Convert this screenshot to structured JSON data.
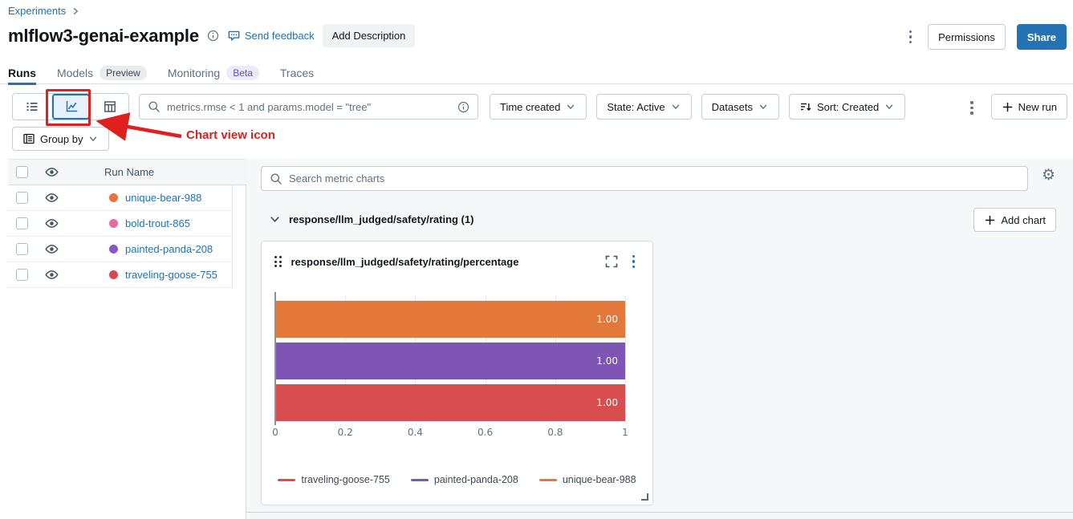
{
  "colors": {
    "accent": "#2272b4",
    "annotation_red": "#e01f1f"
  },
  "breadcrumb": {
    "label": "Experiments"
  },
  "header": {
    "title": "mlflow3-genai-example",
    "send_feedback": "Send feedback",
    "add_description": "Add Description",
    "permissions": "Permissions",
    "share": "Share"
  },
  "tabs": [
    {
      "label": "Runs",
      "badge": null,
      "active": true
    },
    {
      "label": "Models",
      "badge": "Preview",
      "badge_style": "gray",
      "active": false
    },
    {
      "label": "Monitoring",
      "badge": "Beta",
      "badge_style": "purple",
      "active": false
    },
    {
      "label": "Traces",
      "badge": null,
      "active": false
    }
  ],
  "toolbar": {
    "search_value": "metrics.rmse < 1 and params.model = \"tree\"",
    "filters": [
      {
        "label": "Time created",
        "icon": null
      },
      {
        "label": "State: Active",
        "icon": null
      },
      {
        "label": "Datasets",
        "icon": null
      },
      {
        "label": "Sort: Created",
        "icon": "sort"
      }
    ],
    "new_run_label": "New run",
    "group_by_label": "Group by"
  },
  "annotation": {
    "label": "Chart view icon"
  },
  "runs_table": {
    "header_label": "Run Name",
    "rows": [
      {
        "name": "unique-bear-988",
        "color": "#e8743c"
      },
      {
        "name": "bold-trout-865",
        "color": "#e96a9f"
      },
      {
        "name": "painted-panda-208",
        "color": "#8a56c9"
      },
      {
        "name": "traveling-goose-755",
        "color": "#d9494f"
      }
    ]
  },
  "charts_panel": {
    "search_placeholder": "Search metric charts",
    "section_title": "response/llm_judged/safety/rating (1)",
    "add_chart_label": "Add chart"
  },
  "chart_data": {
    "type": "bar",
    "orientation": "horizontal",
    "title": "response/llm_judged/safety/rating/percentage",
    "series": [
      {
        "name": "unique-bear-988",
        "value": 1.0,
        "label": "1.00",
        "color": "#e2793b"
      },
      {
        "name": "painted-panda-208",
        "value": 1.0,
        "label": "1.00",
        "color": "#7e54b4"
      },
      {
        "name": "traveling-goose-755",
        "value": 1.0,
        "label": "1.00",
        "color": "#d84e4e"
      }
    ],
    "xlim": [
      0,
      1
    ],
    "xticks": [
      0,
      0.2,
      0.4,
      0.6,
      0.8,
      1
    ],
    "xtick_labels": [
      "0",
      "0.2",
      "0.4",
      "0.6",
      "0.8",
      "1"
    ],
    "grid": true,
    "legend_position": "bottom",
    "legend": [
      {
        "name": "traveling-goose-755",
        "color": "#d84e4e"
      },
      {
        "name": "painted-panda-208",
        "color": "#7e54b4"
      },
      {
        "name": "unique-bear-988",
        "color": "#e2793b"
      }
    ]
  }
}
